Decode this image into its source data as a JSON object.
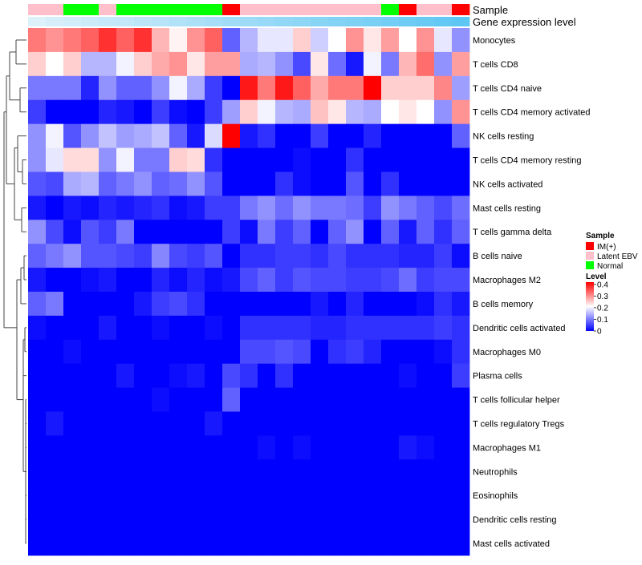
{
  "chart_data": {
    "type": "heatmap",
    "title": "",
    "xlabel": "",
    "ylabel": "",
    "annotation_tracks": [
      {
        "name": "Sample",
        "values": [
          "Latent EBV",
          "Latent EBV",
          "Normal",
          "Normal",
          "Latent EBV",
          "Normal",
          "Normal",
          "Normal",
          "Normal",
          "Normal",
          "Normal",
          "IM(+)",
          "Latent EBV",
          "Latent EBV",
          "Latent EBV",
          "Latent EBV",
          "Latent EBV",
          "Latent EBV",
          "Latent EBV",
          "Latent EBV",
          "Normal",
          "IM(+)",
          "Latent EBV",
          "Latent EBV",
          "IM(+)"
        ]
      },
      {
        "name": "Gene expression level",
        "values": [
          0.05,
          0.1,
          0.14,
          0.18,
          0.22,
          0.25,
          0.29,
          0.33,
          0.37,
          0.41,
          0.45,
          0.49,
          0.52,
          0.56,
          0.6,
          0.63,
          0.67,
          0.71,
          0.74,
          0.78,
          0.82,
          0.86,
          0.9,
          0.94,
          0.98
        ]
      }
    ],
    "rows": [
      "Monocytes",
      "T cells CD8",
      "T cells CD4 naive",
      "T cells CD4 memory activated",
      "NK cells resting",
      "T cells CD4 memory resting",
      "NK cells activated",
      "Mast cells resting",
      "T cells gamma delta",
      "B cells naive",
      "Macrophages M2",
      "B cells memory",
      "Dendritic cells activated",
      "Macrophages M0",
      "Plasma cells",
      "T cells follicular helper",
      "T cells regulatory  Tregs",
      "Macrophages M1",
      "Neutrophils",
      "Eosinophils",
      "Dendritic cells resting",
      "Mast cells activated"
    ],
    "values": [
      [
        0.32,
        0.3,
        0.32,
        0.34,
        0.38,
        0.34,
        0.38,
        0.27,
        0.22,
        0.3,
        0.34,
        0.08,
        0.15,
        0.19,
        0.19,
        0.25,
        0.17,
        0.21,
        0.3,
        0.23,
        0.29,
        0.21,
        0.3,
        0.19,
        0.12
      ],
      [
        0.25,
        0.21,
        0.25,
        0.15,
        0.15,
        0.2,
        0.25,
        0.28,
        0.3,
        0.23,
        0.29,
        0.29,
        0.14,
        0.15,
        0.12,
        0.06,
        0.23,
        0.09,
        0.02,
        0.2,
        0.1,
        0.27,
        0.33,
        0.12,
        0.29
      ],
      [
        0.1,
        0.1,
        0.1,
        0.03,
        0.12,
        0.08,
        0.08,
        0.12,
        0.2,
        0.14,
        0.05,
        0.0,
        0.4,
        0.32,
        0.4,
        0.34,
        0.28,
        0.32,
        0.32,
        0.42,
        0.25,
        0.25,
        0.25,
        0.31,
        0.13
      ],
      [
        0.05,
        0.0,
        0.0,
        0.0,
        0.03,
        0.02,
        0.0,
        0.05,
        0.01,
        0.0,
        0.05,
        0.13,
        0.25,
        0.2,
        0.15,
        0.14,
        0.26,
        0.23,
        0.15,
        0.14,
        0.21,
        0.23,
        0.21,
        0.12,
        0.3
      ],
      [
        0.12,
        0.2,
        0.07,
        0.12,
        0.16,
        0.13,
        0.14,
        0.16,
        0.08,
        0.02,
        0.18,
        0.42,
        0.02,
        0.04,
        0.0,
        0.0,
        0.05,
        0.0,
        0.0,
        0.03,
        0.0,
        0.0,
        0.0,
        0.0,
        0.08
      ],
      [
        0.12,
        0.19,
        0.24,
        0.24,
        0.12,
        0.2,
        0.1,
        0.1,
        0.25,
        0.24,
        0.04,
        0.0,
        0.0,
        0.0,
        0.0,
        0.01,
        0.0,
        0.0,
        0.04,
        0.0,
        0.0,
        0.0,
        0.0,
        0.0,
        0.0
      ],
      [
        0.07,
        0.06,
        0.14,
        0.15,
        0.08,
        0.1,
        0.12,
        0.08,
        0.09,
        0.12,
        0.07,
        0.0,
        0.0,
        0.0,
        0.04,
        0.01,
        0.0,
        0.0,
        0.07,
        0.0,
        0.04,
        0.0,
        0.0,
        0.0,
        0.0
      ],
      [
        0.02,
        0.0,
        0.02,
        0.01,
        0.03,
        0.02,
        0.03,
        0.04,
        0.01,
        0.02,
        0.05,
        0.05,
        0.1,
        0.12,
        0.09,
        0.12,
        0.1,
        0.1,
        0.09,
        0.05,
        0.12,
        0.1,
        0.08,
        0.06,
        0.09
      ],
      [
        0.12,
        0.06,
        0.01,
        0.07,
        0.05,
        0.1,
        0.0,
        0.0,
        0.0,
        0.0,
        0.0,
        0.05,
        0.01,
        0.1,
        0.05,
        0.08,
        0.0,
        0.08,
        0.12,
        0.0,
        0.08,
        0.02,
        0.08,
        0.04,
        0.08
      ],
      [
        0.08,
        0.1,
        0.12,
        0.07,
        0.07,
        0.06,
        0.05,
        0.11,
        0.06,
        0.05,
        0.07,
        0.0,
        0.04,
        0.04,
        0.05,
        0.05,
        0.04,
        0.06,
        0.04,
        0.04,
        0.04,
        0.03,
        0.03,
        0.05,
        0.01
      ],
      [
        0.02,
        0.0,
        0.0,
        0.01,
        0.02,
        0.0,
        0.0,
        0.03,
        0.01,
        0.03,
        0.01,
        0.02,
        0.06,
        0.08,
        0.05,
        0.07,
        0.06,
        0.06,
        0.05,
        0.05,
        0.06,
        0.09,
        0.05,
        0.06,
        0.06
      ],
      [
        0.08,
        0.1,
        0.0,
        0.0,
        0.0,
        0.0,
        0.02,
        0.05,
        0.06,
        0.04,
        0.0,
        0.0,
        0.0,
        0.0,
        0.0,
        0.0,
        0.02,
        0.0,
        0.03,
        0.0,
        0.0,
        0.0,
        0.01,
        0.04,
        0.02
      ],
      [
        0.01,
        0.0,
        0.0,
        0.0,
        0.02,
        0.0,
        0.0,
        0.01,
        0.0,
        0.0,
        0.01,
        0.0,
        0.04,
        0.04,
        0.04,
        0.04,
        0.03,
        0.03,
        0.04,
        0.04,
        0.04,
        0.04,
        0.04,
        0.05,
        0.04
      ],
      [
        0.0,
        0.0,
        0.01,
        0.0,
        0.0,
        0.0,
        0.0,
        0.0,
        0.0,
        0.0,
        0.0,
        0.0,
        0.06,
        0.06,
        0.07,
        0.06,
        0.0,
        0.04,
        0.05,
        0.03,
        0.0,
        0.0,
        0.0,
        0.01,
        0.04
      ],
      [
        0.0,
        0.0,
        0.0,
        0.0,
        0.0,
        0.02,
        0.0,
        0.0,
        0.01,
        0.02,
        0.0,
        0.06,
        0.04,
        0.0,
        0.04,
        0.0,
        0.0,
        0.0,
        0.0,
        0.0,
        0.0,
        0.01,
        0.0,
        0.0,
        0.05
      ],
      [
        0.0,
        0.0,
        0.0,
        0.0,
        0.0,
        0.0,
        0.0,
        0.01,
        0.0,
        0.0,
        0.0,
        0.08,
        0.0,
        0.0,
        0.0,
        0.0,
        0.0,
        0.0,
        0.0,
        0.0,
        0.0,
        0.0,
        0.0,
        0.0,
        0.0
      ],
      [
        0.0,
        0.02,
        0.0,
        0.0,
        0.0,
        0.0,
        0.0,
        0.0,
        0.0,
        0.0,
        0.02,
        0.0,
        0.0,
        0.0,
        0.0,
        0.0,
        0.0,
        0.0,
        0.0,
        0.0,
        0.0,
        0.0,
        0.0,
        0.0,
        0.0
      ],
      [
        0.0,
        0.0,
        0.0,
        0.0,
        0.0,
        0.0,
        0.0,
        0.0,
        0.0,
        0.0,
        0.0,
        0.0,
        0.0,
        0.01,
        0.0,
        0.01,
        0.0,
        0.0,
        0.0,
        0.0,
        0.0,
        0.02,
        0.01,
        0.0,
        0.0
      ],
      [
        0.0,
        0.0,
        0.0,
        0.0,
        0.0,
        0.0,
        0.0,
        0.0,
        0.0,
        0.0,
        0.0,
        0.0,
        0.0,
        0.0,
        0.0,
        0.0,
        0.0,
        0.0,
        0.0,
        0.0,
        0.0,
        0.0,
        0.0,
        0.0,
        0.0
      ],
      [
        0.0,
        0.0,
        0.0,
        0.0,
        0.0,
        0.0,
        0.0,
        0.0,
        0.0,
        0.0,
        0.0,
        0.0,
        0.0,
        0.0,
        0.0,
        0.0,
        0.0,
        0.0,
        0.0,
        0.0,
        0.0,
        0.0,
        0.0,
        0.0,
        0.0
      ],
      [
        0.0,
        0.0,
        0.0,
        0.0,
        0.0,
        0.0,
        0.0,
        0.0,
        0.0,
        0.0,
        0.0,
        0.0,
        0.0,
        0.0,
        0.0,
        0.0,
        0.0,
        0.0,
        0.0,
        0.0,
        0.0,
        0.0,
        0.0,
        0.0,
        0.0
      ],
      [
        0.0,
        0.0,
        0.0,
        0.0,
        0.0,
        0.0,
        0.0,
        0.0,
        0.0,
        0.0,
        0.0,
        0.0,
        0.0,
        0.0,
        0.0,
        0.0,
        0.0,
        0.0,
        0.0,
        0.0,
        0.0,
        0.0,
        0.0,
        0.0,
        0.0
      ]
    ],
    "color_scale": {
      "min": 0,
      "max": 0.42,
      "low": "#0000ff",
      "mid": "#ffffff",
      "high": "#ff0000",
      "midpoint": 0.21
    },
    "legend": {
      "sample_title": "Sample",
      "sample_entries": [
        {
          "label": "IM(+)",
          "color": "#ff0000"
        },
        {
          "label": "Latent EBV",
          "color": "#ffc0cb"
        },
        {
          "label": "Normal",
          "color": "#00ff00"
        }
      ],
      "level_title": "Level",
      "level_ticks": [
        "0.4",
        "0.3",
        "0.2",
        "0.1",
        "0"
      ],
      "level_tick_values": [
        0.4,
        0.3,
        0.2,
        0.1,
        0
      ],
      "placement": "right"
    },
    "gene_expression_colors": {
      "low": "#e4f3fb",
      "high": "#5bc5f2"
    },
    "dendrogram": "rows"
  }
}
